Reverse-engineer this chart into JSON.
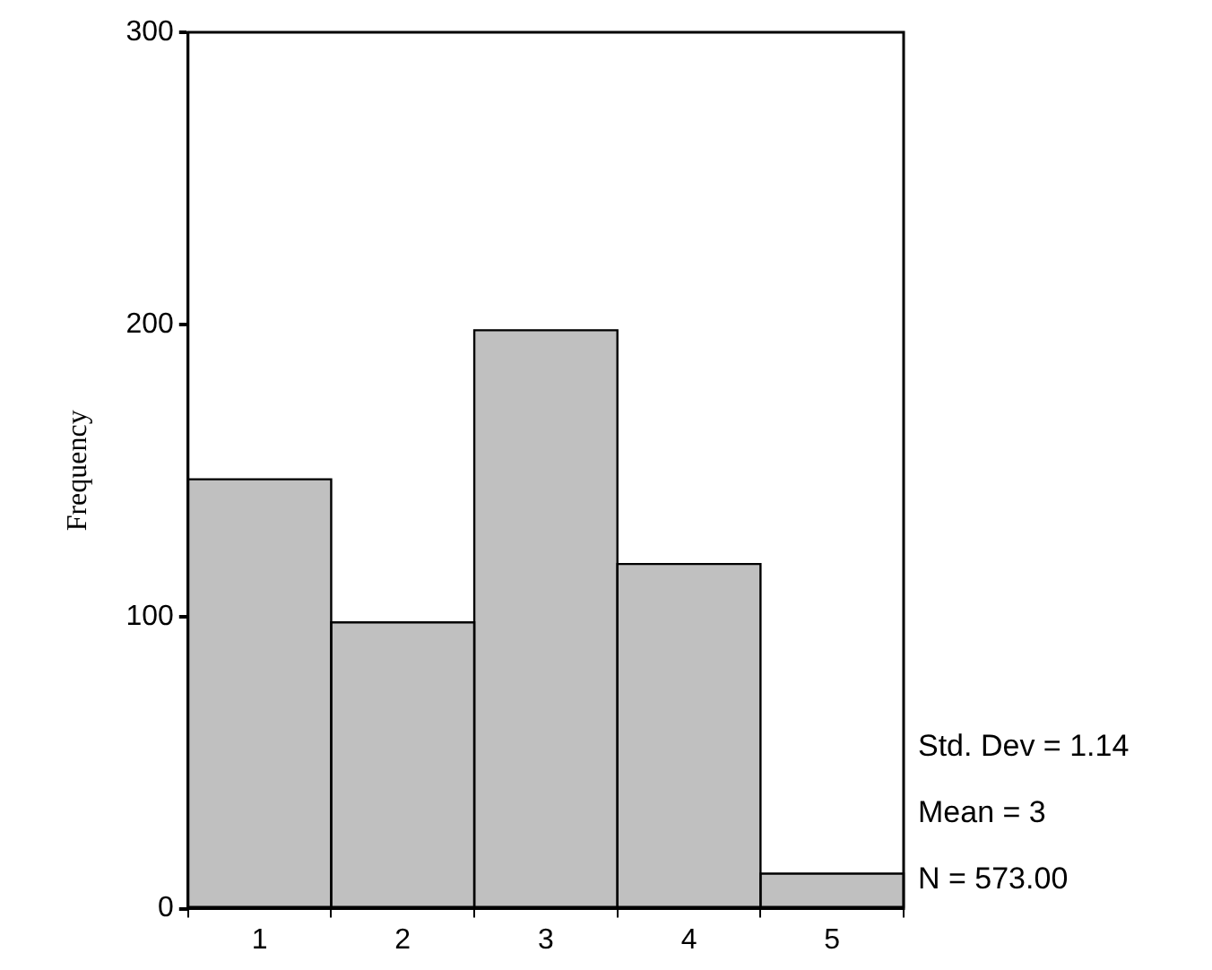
{
  "chart_data": {
    "type": "histogram",
    "ylabel": "Frequency",
    "bins": [
      0.5,
      1.5,
      2.5,
      3.5,
      4.5,
      5.5
    ],
    "values": [
      147,
      98,
      198,
      118,
      12
    ],
    "color": "#c0c0c0",
    "xlim": [
      0.5,
      5.5
    ],
    "xticks": [
      1,
      2,
      3,
      4,
      5
    ],
    "ylim": [
      0,
      300
    ],
    "yticks": [
      0,
      100,
      200,
      300
    ],
    "grid": false,
    "legend": false,
    "annotations": [
      "Std. Dev = 1.14",
      "Mean = 3",
      "N = 573.00"
    ]
  }
}
